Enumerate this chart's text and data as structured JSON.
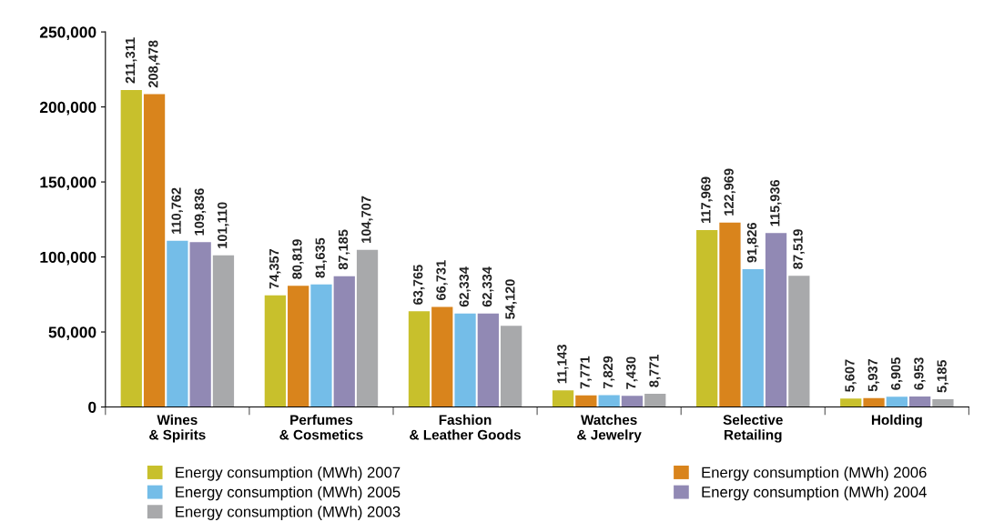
{
  "chart_data": {
    "type": "bar",
    "categories": [
      "Wines\n& Spirits",
      "Perfumes\n& Cosmetics",
      "Fashion\n& Leather Goods",
      "Watches\n& Jewelry",
      "Selective\nRetailing",
      "Holding"
    ],
    "series": [
      {
        "name": "Energy consumption (MWh) 2007",
        "color": "#c8c02c",
        "values": [
          211311,
          74357,
          63765,
          11143,
          117969,
          5607
        ],
        "value_labels": [
          "211,311",
          "74,357",
          "63,765",
          "11,143",
          "117,969",
          "5,607"
        ]
      },
      {
        "name": "Energy consumption (MWh) 2006",
        "color": "#d9841c",
        "values": [
          208478,
          80819,
          66731,
          7771,
          122969,
          5937
        ],
        "value_labels": [
          "208,478",
          "80,819",
          "66,731",
          "7,771",
          "122,969",
          "5,937"
        ]
      },
      {
        "name": "Energy consumption (MWh) 2005",
        "color": "#74bde8",
        "values": [
          110762,
          81635,
          62334,
          7829,
          91826,
          6905
        ],
        "value_labels": [
          "110,762",
          "81,635",
          "62,334",
          "7,829",
          "91,826",
          "6,905"
        ]
      },
      {
        "name": "Energy consumption (MWh) 2004",
        "color": "#9189b4",
        "values": [
          109836,
          87185,
          62334,
          7430,
          115936,
          6953
        ],
        "value_labels": [
          "109,836",
          "87,185",
          "62,334",
          "7,430",
          "115,936",
          "6,953"
        ]
      },
      {
        "name": "Energy consumption (MWh) 2003",
        "color": "#a8a9ab",
        "values": [
          101110,
          104707,
          54120,
          8771,
          87519,
          5185
        ],
        "value_labels": [
          "101,110",
          "104,707",
          "54,120",
          "8,771",
          "87,519",
          "5,185"
        ]
      }
    ],
    "ylim": [
      0,
      250000
    ],
    "yticks": [
      {
        "value": 0,
        "label": "0"
      },
      {
        "value": 50000,
        "label": "50,000"
      },
      {
        "value": 100000,
        "label": "100,000"
      },
      {
        "value": 150000,
        "label": "150,000"
      },
      {
        "value": 200000,
        "label": "200,000"
      },
      {
        "value": 250000,
        "label": "250,000"
      }
    ],
    "grid": false,
    "legend": "bottom"
  }
}
